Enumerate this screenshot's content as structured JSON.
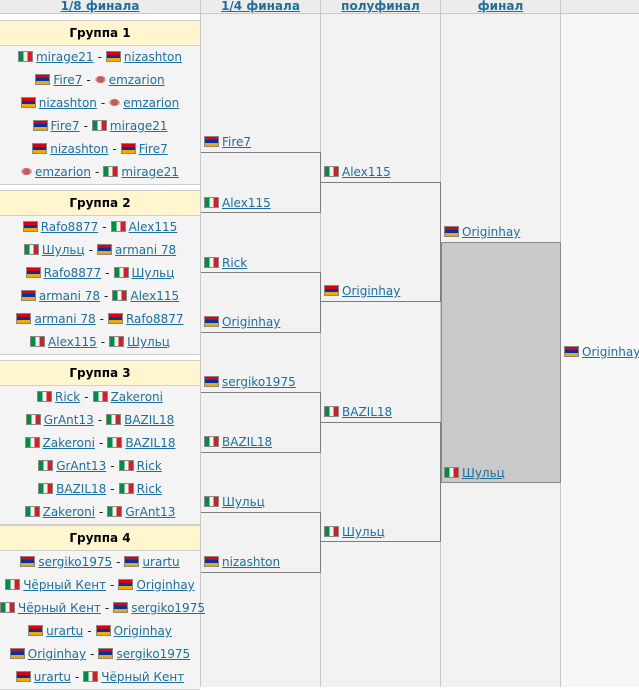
{
  "columns": [
    "1/8 финала",
    "1/4 финала",
    "полуфинал",
    "финал"
  ],
  "groups": [
    {
      "title": "Группа 1",
      "matches": [
        [
          {
            "name": "mirage21",
            "flag": "it"
          },
          {
            "name": "nizashton",
            "flag": "am"
          }
        ],
        [
          {
            "name": "Fire7",
            "flag": "am"
          },
          {
            "name": "emzarion",
            "flag": "by"
          }
        ],
        [
          {
            "name": "nizashton",
            "flag": "am"
          },
          {
            "name": "emzarion",
            "flag": "by"
          }
        ],
        [
          {
            "name": "Fire7",
            "flag": "am"
          },
          {
            "name": "mirage21",
            "flag": "it"
          }
        ],
        [
          {
            "name": "nizashton",
            "flag": "am"
          },
          {
            "name": "Fire7",
            "flag": "am"
          }
        ],
        [
          {
            "name": "emzarion",
            "flag": "by"
          },
          {
            "name": "mirage21",
            "flag": "it"
          }
        ]
      ]
    },
    {
      "title": "Группа 2",
      "matches": [
        [
          {
            "name": "Rafo8877",
            "flag": "am"
          },
          {
            "name": "Alex115",
            "flag": "it"
          }
        ],
        [
          {
            "name": "Шульц",
            "flag": "it"
          },
          {
            "name": "armani 78",
            "flag": "am"
          }
        ],
        [
          {
            "name": "Rafo8877",
            "flag": "am"
          },
          {
            "name": "Шульц",
            "flag": "it"
          }
        ],
        [
          {
            "name": "armani 78",
            "flag": "am"
          },
          {
            "name": "Alex115",
            "flag": "it"
          }
        ],
        [
          {
            "name": "armani 78",
            "flag": "am"
          },
          {
            "name": "Rafo8877",
            "flag": "am"
          }
        ],
        [
          {
            "name": "Alex115",
            "flag": "it"
          },
          {
            "name": "Шульц",
            "flag": "it"
          }
        ]
      ]
    },
    {
      "title": "Группа 3",
      "matches": [
        [
          {
            "name": "Rick",
            "flag": "it"
          },
          {
            "name": "Zakeroni",
            "flag": "it"
          }
        ],
        [
          {
            "name": "GrAnt13",
            "flag": "it"
          },
          {
            "name": "BAZIL18",
            "flag": "it"
          }
        ],
        [
          {
            "name": "Zakeroni",
            "flag": "it"
          },
          {
            "name": "BAZIL18",
            "flag": "it"
          }
        ],
        [
          {
            "name": "GrAnt13",
            "flag": "it"
          },
          {
            "name": "Rick",
            "flag": "it"
          }
        ],
        [
          {
            "name": "BAZIL18",
            "flag": "it"
          },
          {
            "name": "Rick",
            "flag": "it"
          }
        ],
        [
          {
            "name": "Zakeroni",
            "flag": "it"
          },
          {
            "name": "GrAnt13",
            "flag": "it"
          }
        ]
      ]
    },
    {
      "title": "Группа 4",
      "matches": [
        [
          {
            "name": "sergiko1975",
            "flag": "am"
          },
          {
            "name": "urartu",
            "flag": "am"
          }
        ],
        [
          {
            "name": "Чёрный Кент",
            "flag": "it"
          },
          {
            "name": "Originhay",
            "flag": "am"
          }
        ],
        [
          {
            "name": "Чёрный Кент",
            "flag": "it"
          },
          {
            "name": "sergiko1975",
            "flag": "am"
          }
        ],
        [
          {
            "name": "urartu",
            "flag": "am"
          },
          {
            "name": "Originhay",
            "flag": "am"
          }
        ],
        [
          {
            "name": "Originhay",
            "flag": "am"
          },
          {
            "name": "sergiko1975",
            "flag": "am"
          }
        ],
        [
          {
            "name": "urartu",
            "flag": "am"
          },
          {
            "name": "Чёрный Кент",
            "flag": "it"
          }
        ]
      ]
    }
  ],
  "quarterfinal": [
    {
      "name": "Fire7",
      "flag": "am"
    },
    {
      "name": "Alex115",
      "flag": "it"
    },
    {
      "name": "Rick",
      "flag": "it"
    },
    {
      "name": "Originhay",
      "flag": "am"
    },
    {
      "name": "sergiko1975",
      "flag": "am"
    },
    {
      "name": "BAZIL18",
      "flag": "it"
    },
    {
      "name": "Шульц",
      "flag": "it"
    },
    {
      "name": "nizashton",
      "flag": "am"
    }
  ],
  "semifinal": [
    {
      "name": "Alex115",
      "flag": "it"
    },
    {
      "name": "Originhay",
      "flag": "am"
    },
    {
      "name": "BAZIL18",
      "flag": "it"
    },
    {
      "name": "Шульц",
      "flag": "it"
    }
  ],
  "final": [
    {
      "name": "Originhay",
      "flag": "am"
    },
    {
      "name": "Шульц",
      "flag": "it"
    }
  ],
  "winner": {
    "name": "Originhay",
    "flag": "am"
  },
  "colors": {
    "link": "#1d6f9c",
    "group_header": "#fff6cf",
    "final_box": "#c9c9c9"
  }
}
